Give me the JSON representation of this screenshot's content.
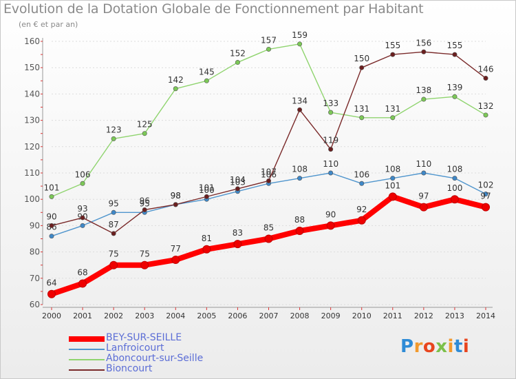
{
  "header": {
    "title": "Evolution de la Dotation Globale de Fonctionnement par Habitant",
    "subtitle": "(en € et par an)"
  },
  "chart_data": {
    "type": "line",
    "title": "Evolution de la Dotation Globale de Fonctionnement par Habitant",
    "ylabel": "(en € et par an)",
    "xlabel": "",
    "x": [
      "2000",
      "2001",
      "2002",
      "2003",
      "2004",
      "2005",
      "2006",
      "2007",
      "2008",
      "2009",
      "2010",
      "2011",
      "2012",
      "2013",
      "2014"
    ],
    "yticks": [
      "60",
      "70",
      "80",
      "90",
      "100",
      "110",
      "120",
      "130",
      "140",
      "150",
      "160"
    ],
    "ylim": [
      60,
      160
    ],
    "grid": true,
    "legend_position": "bottom-left",
    "series": [
      {
        "name": "Lanfroicourt",
        "color": "#4f95cd",
        "marker": "#3f88c8",
        "width": 1.4,
        "values": [
          86,
          90,
          95,
          95,
          98,
          100,
          103,
          106,
          108,
          110,
          106,
          108,
          110,
          108,
          102
        ]
      },
      {
        "name": "Aboncourt-sur-Seille",
        "color": "#8fd46e",
        "marker": "#7cc857",
        "width": 1.4,
        "values": [
          101,
          106,
          123,
          125,
          142,
          145,
          152,
          157,
          159,
          133,
          131,
          131,
          138,
          139,
          132
        ]
      },
      {
        "name": "Bioncourt",
        "color": "#7a2a2a",
        "marker": "#6b1f1f",
        "width": 1.4,
        "values": [
          90,
          93,
          87,
          96,
          98,
          101,
          104,
          107,
          134,
          119,
          150,
          155,
          156,
          155,
          146
        ]
      },
      {
        "name": "BEY-SUR-SEILLE",
        "color": "#ff0000",
        "marker": "#ee0000",
        "width": 8,
        "values": [
          64,
          68,
          75,
          75,
          77,
          81,
          83,
          85,
          88,
          90,
          92,
          101,
          97,
          100,
          97
        ]
      }
    ]
  },
  "legend": {
    "items": [
      {
        "label": "BEY-SUR-SEILLE",
        "color": "#ff0000"
      },
      {
        "label": "Lanfroicourt",
        "color": "#4f95cd"
      },
      {
        "label": "Aboncourt-sur-Seille",
        "color": "#8fd46e"
      },
      {
        "label": "Bioncourt",
        "color": "#7a2a2a"
      }
    ]
  },
  "logo": {
    "text": "Proxiti",
    "colors": [
      "#2e8bd6",
      "#f29a2e",
      "#e8451e",
      "#7cc04a",
      "#f29a2e",
      "#2e8bd6",
      "#e8451e"
    ]
  }
}
